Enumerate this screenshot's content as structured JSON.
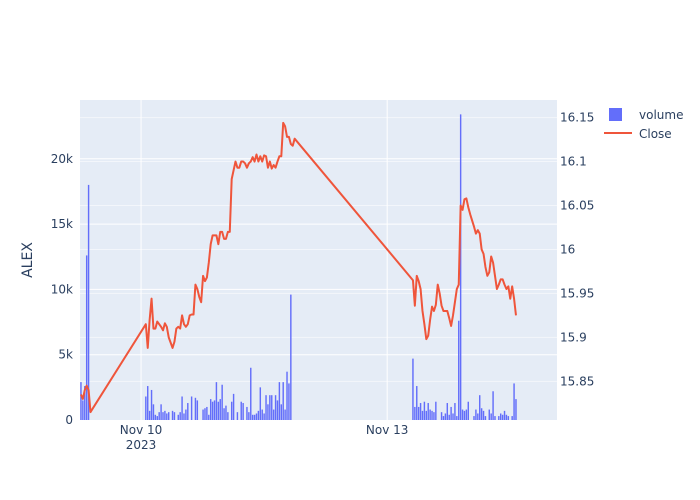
{
  "chart_data": {
    "type": "bar",
    "ylabel": "ALEX",
    "y_left": {
      "range": [
        0,
        24500
      ],
      "ticks": [
        0,
        5000,
        10000,
        15000,
        20000
      ],
      "tick_labels": [
        "0",
        "5k",
        "10k",
        "15k",
        "20k"
      ]
    },
    "y_right": {
      "range": [
        15.806,
        16.17
      ],
      "ticks": [
        15.85,
        15.9,
        15.95,
        16.0,
        16.05,
        16.1,
        16.15
      ],
      "tick_labels": [
        "15.85",
        "15.9",
        "15.95",
        "16",
        "16.05",
        "16.1",
        "16.15"
      ]
    },
    "x_ticks": [
      {
        "label": "Nov 10",
        "sublabel": "2023",
        "t": 32
      },
      {
        "label": "Nov 13",
        "sublabel": "",
        "t": 161
      }
    ],
    "x_range": [
      0,
      250
    ],
    "grid": true,
    "legend_position": "top-right",
    "series": [
      {
        "name": "volume",
        "type": "bar",
        "axis": "left",
        "color": "#636efa",
        "points": [
          [
            0,
            2900
          ],
          [
            1,
            1500
          ],
          [
            2,
            2600
          ],
          [
            3,
            12600
          ],
          [
            4,
            18000
          ],
          [
            34,
            1800
          ],
          [
            35,
            2600
          ],
          [
            36,
            700
          ],
          [
            37,
            2300
          ],
          [
            38,
            1200
          ],
          [
            39,
            400
          ],
          [
            40,
            300
          ],
          [
            41,
            600
          ],
          [
            42,
            1200
          ],
          [
            43,
            600
          ],
          [
            44,
            700
          ],
          [
            45,
            500
          ],
          [
            46,
            600
          ],
          [
            48,
            700
          ],
          [
            49,
            600
          ],
          [
            51,
            400
          ],
          [
            52,
            600
          ],
          [
            53,
            1800
          ],
          [
            54,
            500
          ],
          [
            55,
            800
          ],
          [
            56,
            1300
          ],
          [
            58,
            1800
          ],
          [
            60,
            1700
          ],
          [
            61,
            1500
          ],
          [
            64,
            800
          ],
          [
            65,
            900
          ],
          [
            66,
            1000
          ],
          [
            67,
            400
          ],
          [
            68,
            1600
          ],
          [
            69,
            1400
          ],
          [
            70,
            1500
          ],
          [
            71,
            2900
          ],
          [
            72,
            1400
          ],
          [
            73,
            1600
          ],
          [
            74,
            2700
          ],
          [
            75,
            900
          ],
          [
            76,
            1100
          ],
          [
            77,
            600
          ],
          [
            79,
            1400
          ],
          [
            80,
            2000
          ],
          [
            82,
            600
          ],
          [
            84,
            1400
          ],
          [
            85,
            1300
          ],
          [
            87,
            1000
          ],
          [
            88,
            600
          ],
          [
            89,
            4000
          ],
          [
            90,
            400
          ],
          [
            91,
            400
          ],
          [
            92,
            500
          ],
          [
            93,
            700
          ],
          [
            94,
            2500
          ],
          [
            95,
            800
          ],
          [
            96,
            500
          ],
          [
            97,
            1900
          ],
          [
            98,
            1200
          ],
          [
            99,
            1900
          ],
          [
            100,
            1900
          ],
          [
            101,
            800
          ],
          [
            102,
            1900
          ],
          [
            103,
            1500
          ],
          [
            104,
            2900
          ],
          [
            105,
            1200
          ],
          [
            106,
            2900
          ],
          [
            107,
            800
          ],
          [
            108,
            3700
          ],
          [
            109,
            2800
          ],
          [
            110,
            9600
          ],
          [
            174,
            4700
          ],
          [
            175,
            1000
          ],
          [
            176,
            2600
          ],
          [
            177,
            1000
          ],
          [
            178,
            1300
          ],
          [
            179,
            700
          ],
          [
            180,
            1400
          ],
          [
            181,
            700
          ],
          [
            182,
            1300
          ],
          [
            183,
            800
          ],
          [
            184,
            700
          ],
          [
            185,
            600
          ],
          [
            186,
            1400
          ],
          [
            189,
            600
          ],
          [
            190,
            300
          ],
          [
            191,
            500
          ],
          [
            192,
            1300
          ],
          [
            193,
            400
          ],
          [
            194,
            1000
          ],
          [
            195,
            500
          ],
          [
            196,
            1300
          ],
          [
            197,
            300
          ],
          [
            198,
            7600
          ],
          [
            199,
            23400
          ],
          [
            200,
            800
          ],
          [
            201,
            700
          ],
          [
            202,
            800
          ],
          [
            203,
            1400
          ],
          [
            206,
            300
          ],
          [
            207,
            800
          ],
          [
            208,
            500
          ],
          [
            209,
            1900
          ],
          [
            210,
            900
          ],
          [
            211,
            700
          ],
          [
            212,
            300
          ],
          [
            214,
            800
          ],
          [
            215,
            500
          ],
          [
            216,
            2200
          ],
          [
            217,
            300
          ],
          [
            219,
            300
          ],
          [
            220,
            500
          ],
          [
            221,
            400
          ],
          [
            222,
            700
          ],
          [
            223,
            400
          ],
          [
            224,
            300
          ],
          [
            226,
            300
          ],
          [
            227,
            2800
          ],
          [
            228,
            1600
          ]
        ]
      },
      {
        "name": "Close",
        "type": "line",
        "axis": "right",
        "color": "#ef553b",
        "points": [
          [
            0,
            15.835
          ],
          [
            1,
            15.83
          ],
          [
            2,
            15.84
          ],
          [
            3,
            15.845
          ],
          [
            4,
            15.84
          ],
          [
            5,
            15.815
          ],
          [
            34,
            15.915
          ],
          [
            35,
            15.888
          ],
          [
            36,
            15.92
          ],
          [
            37,
            15.944
          ],
          [
            38,
            15.91
          ],
          [
            39,
            15.91
          ],
          [
            40,
            15.918
          ],
          [
            41,
            15.915
          ],
          [
            42,
            15.912
          ],
          [
            43,
            15.908
          ],
          [
            44,
            15.916
          ],
          [
            45,
            15.912
          ],
          [
            46,
            15.9
          ],
          [
            47,
            15.894
          ],
          [
            48,
            15.888
          ],
          [
            49,
            15.895
          ],
          [
            50,
            15.91
          ],
          [
            51,
            15.912
          ],
          [
            52,
            15.91
          ],
          [
            53,
            15.925
          ],
          [
            54,
            15.915
          ],
          [
            55,
            15.912
          ],
          [
            56,
            15.915
          ],
          [
            57,
            15.925
          ],
          [
            58,
            15.926
          ],
          [
            59,
            15.926
          ],
          [
            60,
            15.96
          ],
          [
            61,
            15.955
          ],
          [
            62,
            15.946
          ],
          [
            63,
            15.94
          ],
          [
            64,
            15.97
          ],
          [
            65,
            15.964
          ],
          [
            66,
            15.968
          ],
          [
            67,
            15.985
          ],
          [
            68,
            16.006
          ],
          [
            69,
            16.016
          ],
          [
            70,
            16.016
          ],
          [
            71,
            16.016
          ],
          [
            72,
            16.006
          ],
          [
            73,
            16.02
          ],
          [
            74,
            16.02
          ],
          [
            75,
            16.012
          ],
          [
            76,
            16.012
          ],
          [
            77,
            16.02
          ],
          [
            78,
            16.02
          ],
          [
            79,
            16.08
          ],
          [
            80,
            16.09
          ],
          [
            81,
            16.1
          ],
          [
            82,
            16.093
          ],
          [
            83,
            16.093
          ],
          [
            84,
            16.1
          ],
          [
            85,
            16.1
          ],
          [
            86,
            16.098
          ],
          [
            87,
            16.093
          ],
          [
            88,
            16.098
          ],
          [
            89,
            16.1
          ],
          [
            90,
            16.105
          ],
          [
            91,
            16.1
          ],
          [
            92,
            16.108
          ],
          [
            93,
            16.1
          ],
          [
            94,
            16.106
          ],
          [
            95,
            16.1
          ],
          [
            96,
            16.107
          ],
          [
            97,
            16.106
          ],
          [
            98,
            16.093
          ],
          [
            99,
            16.1
          ],
          [
            100,
            16.092
          ],
          [
            101,
            16.096
          ],
          [
            102,
            16.093
          ],
          [
            103,
            16.1
          ],
          [
            104,
            16.106
          ],
          [
            105,
            16.106
          ],
          [
            106,
            16.144
          ],
          [
            107,
            16.14
          ],
          [
            108,
            16.128
          ],
          [
            109,
            16.128
          ],
          [
            110,
            16.12
          ],
          [
            111,
            16.118
          ],
          [
            112,
            16.126
          ],
          [
            174,
            15.965
          ],
          [
            175,
            15.936
          ],
          [
            176,
            15.97
          ],
          [
            177,
            15.964
          ],
          [
            178,
            15.955
          ],
          [
            179,
            15.93
          ],
          [
            180,
            15.915
          ],
          [
            181,
            15.898
          ],
          [
            182,
            15.902
          ],
          [
            183,
            15.92
          ],
          [
            184,
            15.935
          ],
          [
            185,
            15.93
          ],
          [
            186,
            15.937
          ],
          [
            187,
            15.96
          ],
          [
            188,
            15.95
          ],
          [
            189,
            15.936
          ],
          [
            190,
            15.93
          ],
          [
            191,
            15.93
          ],
          [
            192,
            15.93
          ],
          [
            193,
            15.922
          ],
          [
            194,
            15.913
          ],
          [
            195,
            15.925
          ],
          [
            196,
            15.94
          ],
          [
            197,
            15.955
          ],
          [
            198,
            15.96
          ],
          [
            199,
            16.05
          ],
          [
            200,
            16.045
          ],
          [
            201,
            16.057
          ],
          [
            202,
            16.058
          ],
          [
            203,
            16.048
          ],
          [
            204,
            16.04
          ],
          [
            205,
            16.033
          ],
          [
            206,
            16.026
          ],
          [
            207,
            16.018
          ],
          [
            208,
            16.022
          ],
          [
            209,
            16.018
          ],
          [
            210,
            16.0
          ],
          [
            211,
            15.995
          ],
          [
            212,
            15.98
          ],
          [
            213,
            15.97
          ],
          [
            214,
            15.974
          ],
          [
            215,
            15.992
          ],
          [
            216,
            15.985
          ],
          [
            217,
            15.97
          ],
          [
            218,
            15.955
          ],
          [
            219,
            15.96
          ],
          [
            220,
            15.966
          ],
          [
            221,
            15.966
          ],
          [
            222,
            15.96
          ],
          [
            223,
            15.955
          ],
          [
            224,
            15.958
          ],
          [
            225,
            15.944
          ],
          [
            226,
            15.958
          ],
          [
            227,
            15.944
          ],
          [
            228,
            15.925
          ]
        ]
      }
    ]
  }
}
